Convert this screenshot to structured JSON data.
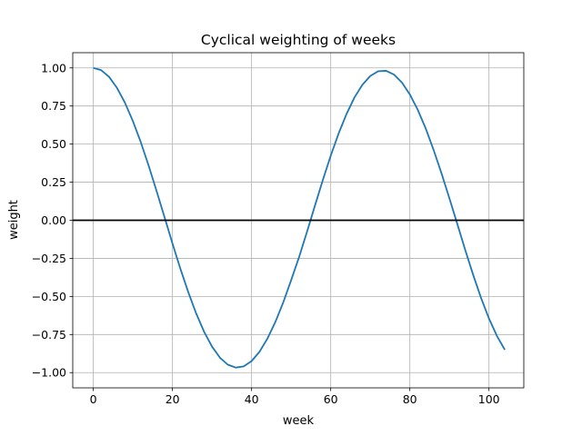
{
  "chart_data": {
    "type": "line",
    "title": "Cyclical weighting of weeks",
    "xlabel": "week",
    "ylabel": "weight",
    "xlim": [
      -5.2,
      108.8
    ],
    "ylim": [
      -1.1,
      1.1
    ],
    "xticks": [
      0,
      20,
      40,
      60,
      80,
      100
    ],
    "xtick_labels": [
      "0",
      "20",
      "40",
      "60",
      "80",
      "100"
    ],
    "yticks": [
      -1.0,
      -0.75,
      -0.5,
      -0.25,
      0.0,
      0.25,
      0.5,
      0.75,
      1.0
    ],
    "ytick_labels": [
      "−1.00",
      "−0.75",
      "−0.50",
      "−0.25",
      "0.00",
      "0.25",
      "0.50",
      "0.75",
      "1.00"
    ],
    "grid": true,
    "reference_line": {
      "y": 0.0,
      "color": "#000000"
    },
    "series": [
      {
        "color": "#1f77b4",
        "x": [
          0,
          2,
          4,
          6,
          8,
          10,
          12,
          14,
          16,
          18,
          20,
          22,
          24,
          26,
          28,
          30,
          32,
          34,
          36,
          38,
          40,
          42,
          44,
          46,
          48,
          50,
          52,
          54,
          56,
          58,
          60,
          62,
          64,
          66,
          68,
          70,
          72,
          74,
          76,
          78,
          80,
          82,
          84,
          86,
          88,
          90,
          92,
          94,
          96,
          98,
          100,
          102,
          104
        ],
        "y": [
          1.0,
          0.985,
          0.941,
          0.868,
          0.771,
          0.651,
          0.512,
          0.357,
          0.191,
          0.02,
          -0.152,
          -0.318,
          -0.472,
          -0.612,
          -0.732,
          -0.829,
          -0.902,
          -0.948,
          -0.967,
          -0.959,
          -0.924,
          -0.863,
          -0.777,
          -0.668,
          -0.539,
          -0.393,
          -0.242,
          -0.076,
          0.095,
          0.264,
          0.424,
          0.57,
          0.698,
          0.806,
          0.889,
          0.947,
          0.978,
          0.981,
          0.956,
          0.904,
          0.826,
          0.725,
          0.603,
          0.462,
          0.308,
          0.144,
          -0.025,
          -0.195,
          -0.358,
          -0.51,
          -0.645,
          -0.759,
          -0.85
        ]
      }
    ]
  }
}
